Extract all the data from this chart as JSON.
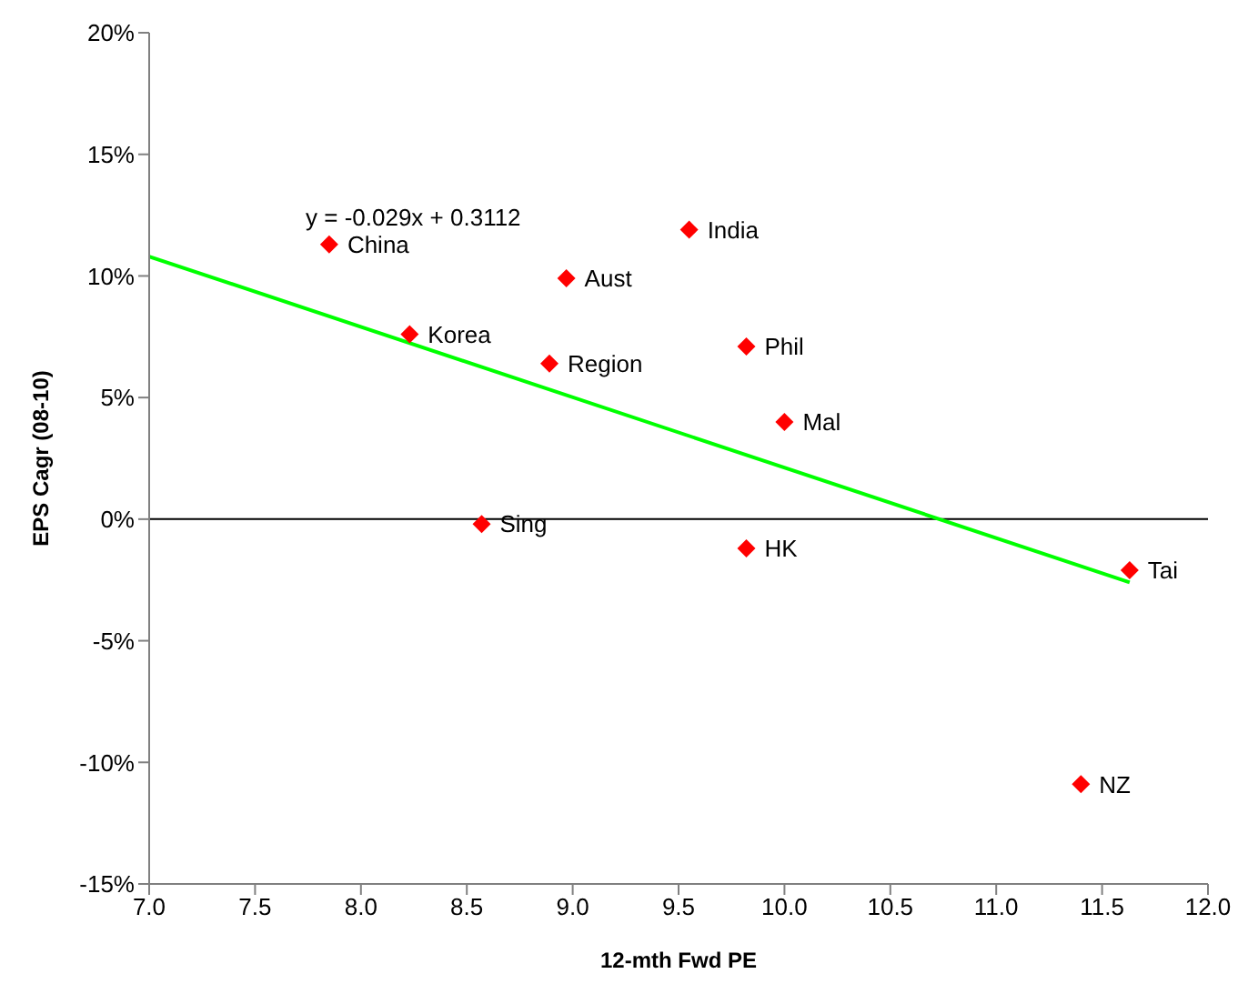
{
  "chart_data": {
    "type": "scatter",
    "xlabel": "12-mth Fwd PE",
    "ylabel": "EPS Cagr (08-10)",
    "xlim": [
      7,
      12
    ],
    "xticks": [
      {
        "value": 7,
        "label": "7.0"
      },
      {
        "value": 7.5,
        "label": "7.5"
      },
      {
        "value": 8,
        "label": "8.0"
      },
      {
        "value": 8.5,
        "label": "8.5"
      },
      {
        "value": 9,
        "label": "9.0"
      },
      {
        "value": 9.5,
        "label": "9.5"
      },
      {
        "value": 10,
        "label": "10.0"
      },
      {
        "value": 10.5,
        "label": "10.5"
      },
      {
        "value": 11,
        "label": "11.0"
      },
      {
        "value": 11.5,
        "label": "11.5"
      },
      {
        "value": 12,
        "label": "12.0"
      }
    ],
    "ylim": [
      -15,
      20
    ],
    "yticks": [
      {
        "value": -15,
        "label": "-15%"
      },
      {
        "value": -10,
        "label": "-10%"
      },
      {
        "value": -5,
        "label": "-5%"
      },
      {
        "value": 0,
        "label": "0%"
      },
      {
        "value": 5,
        "label": "5%"
      },
      {
        "value": 10,
        "label": "10%"
      },
      {
        "value": 15,
        "label": "15%"
      },
      {
        "value": 20,
        "label": "20%"
      }
    ],
    "grid": false,
    "legend": false,
    "series": [
      {
        "marker": "diamond",
        "color": "#ff0000",
        "x": [
          7.85,
          8.23,
          8.57,
          8.89,
          8.97,
          9.55,
          9.82,
          9.82,
          10.0,
          11.4,
          11.63
        ],
        "values": [
          11.3,
          7.6,
          -0.2,
          6.4,
          9.9,
          11.9,
          -1.2,
          7.1,
          4.0,
          -10.9,
          -2.1
        ]
      },
      {
        "type": "line",
        "marker": "none",
        "color": "#00ff00",
        "x": [
          7,
          11.63
        ],
        "values": [
          10.8,
          -2.6
        ]
      }
    ],
    "ref_lines": [
      {
        "axis": "y",
        "value": 0,
        "color": "#000000"
      }
    ],
    "annotations": [
      "y = -0.029x + 0.3112",
      {
        "text": "China",
        "x": 7.85,
        "y": 11.3
      },
      {
        "text": "Korea",
        "x": 8.23,
        "y": 7.6
      },
      {
        "text": "Sing",
        "x": 8.57,
        "y": -0.2
      },
      {
        "text": "Region",
        "x": 8.89,
        "y": 6.4
      },
      {
        "text": "Aust",
        "x": 8.97,
        "y": 9.9
      },
      {
        "text": "India",
        "x": 9.55,
        "y": 11.9
      },
      {
        "text": "HK",
        "x": 9.82,
        "y": -1.2
      },
      {
        "text": "Phil",
        "x": 9.82,
        "y": 7.1
      },
      {
        "text": "Mal",
        "x": 10.0,
        "y": 4.0
      },
      {
        "text": "NZ",
        "x": 11.4,
        "y": -10.9
      },
      {
        "text": "Tai",
        "x": 11.63,
        "y": -2.1
      }
    ]
  }
}
